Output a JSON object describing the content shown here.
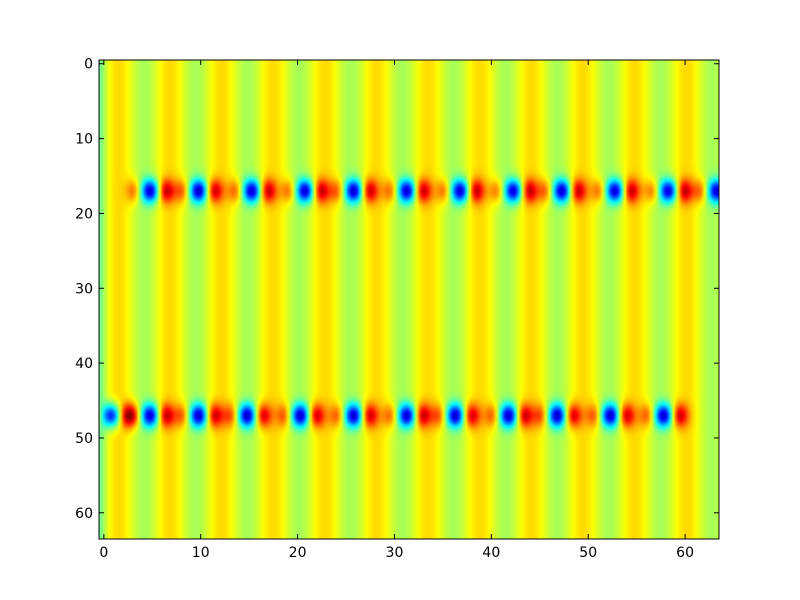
{
  "chart_data": {
    "type": "heatmap",
    "title": "",
    "xlabel": "",
    "ylabel": "",
    "size": [
      64,
      64
    ],
    "xlim": [
      -0.5,
      63.5
    ],
    "ylim": [
      63.5,
      -0.5
    ],
    "colormap": "jet",
    "x_ticks": [
      0,
      10,
      20,
      30,
      40,
      50,
      60
    ],
    "x_tick_labels": [
      "0",
      "10",
      "20",
      "30",
      "40",
      "50",
      "60"
    ],
    "y_ticks": [
      0,
      10,
      20,
      30,
      40,
      50,
      60
    ],
    "y_tick_labels": [
      "0",
      "10",
      "20",
      "30",
      "40",
      "50",
      "60"
    ],
    "background_level": 0.6,
    "stripe_period": 5.33,
    "stripe_columns": [
      1.5,
      6.8,
      12.1,
      17.5,
      22.8,
      28.1,
      33.5,
      38.8,
      44.1,
      49.5,
      54.8,
      60.1
    ],
    "feature_rows": [
      17,
      47
    ],
    "features_row_17": {
      "centers_x": [
        5.0,
        10.0,
        15.5,
        21.0,
        26.0,
        31.5,
        37.0,
        42.5,
        47.5,
        53.0,
        58.5,
        63.5
      ],
      "low_value": 0.0,
      "high_value": 1.0
    },
    "features_row_47": {
      "centers_x": [
        1.0,
        5.0,
        10.0,
        15.0,
        20.5,
        26.0,
        31.5,
        36.5,
        42.0,
        47.0,
        52.5,
        58.0
      ],
      "low_value": 0.0,
      "high_value": 1.0
    }
  }
}
